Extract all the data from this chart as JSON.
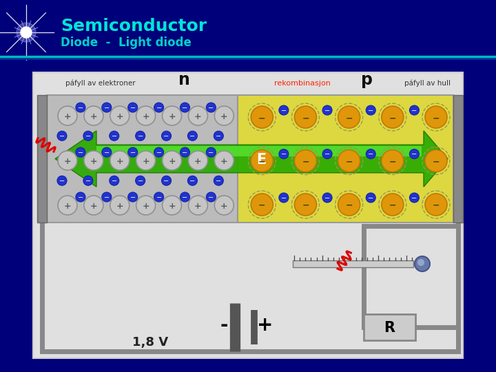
{
  "bg_color": "#00007a",
  "title_text": "Semiconductor",
  "subtitle_text": "Diode  -  Light diode",
  "title_color": "#00e5d8",
  "subtitle_color": "#00d0c8",
  "title_fontsize": 18,
  "subtitle_fontsize": 12,
  "main_bg": "#d8d8d8",
  "n_region_color": "#b8b8b8",
  "p_region_color": "#e8e060",
  "n_label": "n",
  "p_label": "p",
  "recomb_label": "rekombinasjon",
  "recomb_label_color": "#ff2200",
  "paafyll_elektroner": "páfyll av elektroner",
  "paafyll_hull": "páfyll av hull",
  "e_label": "E",
  "voltage_label": "1,8 V",
  "r_label": "R",
  "minus_label": "-",
  "plus_label": "+"
}
